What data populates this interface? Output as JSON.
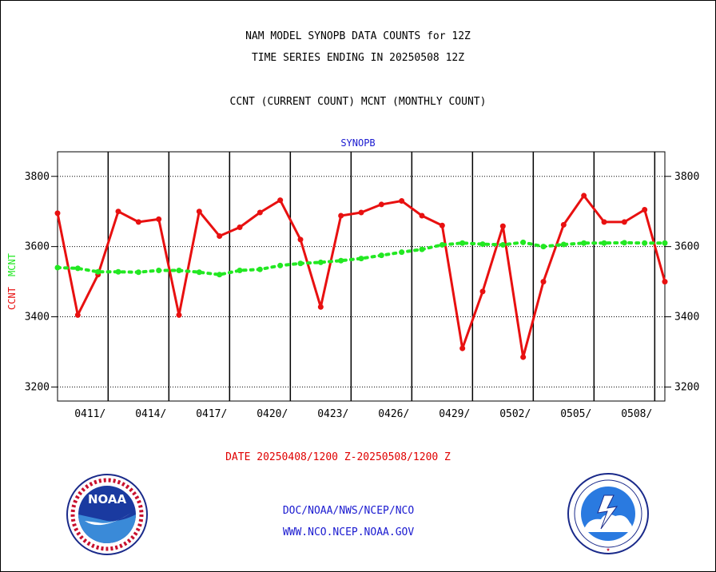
{
  "title_lines": [
    "NAM MODEL SYNOPB DATA COUNTS for 12Z",
    "TIME SERIES ENDING IN 20250508 12Z",
    "CCNT (CURRENT COUNT) MCNT (MONTHLY COUNT)"
  ],
  "panel_label": "SYNOPB",
  "ylabel_parts": [
    "CCNT",
    "MCNT"
  ],
  "date_range": "DATE 20250408/1200 Z-20250508/1200 Z",
  "footer": {
    "doc": "DOC/NOAA/NWS/NCEP/NCO",
    "www": "WWW.NCO.NCEP.NOAA.GOV"
  },
  "logos": {
    "noaa_text": "NOAA",
    "nws_ring": "NATIONAL WEATHER SERVICE"
  },
  "colors": {
    "ccnt": "#e81010",
    "mcnt": "#22e822",
    "text_blue": "#1a1ad0",
    "grid": "#000000"
  },
  "chart_data": {
    "type": "line",
    "x_unit": "day offset from 20250408 12Z",
    "x": [
      0,
      1,
      2,
      3,
      4,
      5,
      6,
      7,
      8,
      9,
      10,
      11,
      12,
      13,
      14,
      15,
      16,
      17,
      18,
      19,
      20,
      21,
      22,
      23,
      24,
      25,
      26,
      27,
      28,
      29,
      30
    ],
    "xlim": [
      0,
      30
    ],
    "ylim": [
      3160,
      3870
    ],
    "yticks": [
      3200,
      3400,
      3600,
      3800
    ],
    "xtick_labels": [
      "0411/",
      "0414/",
      "0417/",
      "0420/",
      "0423/",
      "0426/",
      "0429/",
      "0502/",
      "0505/",
      "0508/"
    ],
    "xtick_positions": [
      2.5,
      5.5,
      8.5,
      11.5,
      14.5,
      17.5,
      20.5,
      23.5,
      26.5,
      29.5
    ],
    "grid": true,
    "series": [
      {
        "name": "CCNT",
        "style": "solid",
        "values": [
          3695,
          3405,
          3520,
          3700,
          3670,
          3678,
          3405,
          3700,
          3630,
          3655,
          3697,
          3732,
          3620,
          3428,
          3688,
          3697,
          3720,
          3730,
          3688,
          3660,
          3310,
          3472,
          3658,
          3285,
          3500,
          3662,
          3745,
          3670,
          3670,
          3705,
          3500
        ]
      },
      {
        "name": "MCNT",
        "style": "dotted",
        "values": [
          3540,
          3538,
          3528,
          3528,
          3527,
          3532,
          3532,
          3527,
          3520,
          3532,
          3535,
          3546,
          3552,
          3555,
          3560,
          3566,
          3575,
          3584,
          3592,
          3605,
          3610,
          3607,
          3605,
          3612,
          3600,
          3606,
          3610,
          3610,
          3611,
          3610,
          3610
        ]
      }
    ]
  }
}
